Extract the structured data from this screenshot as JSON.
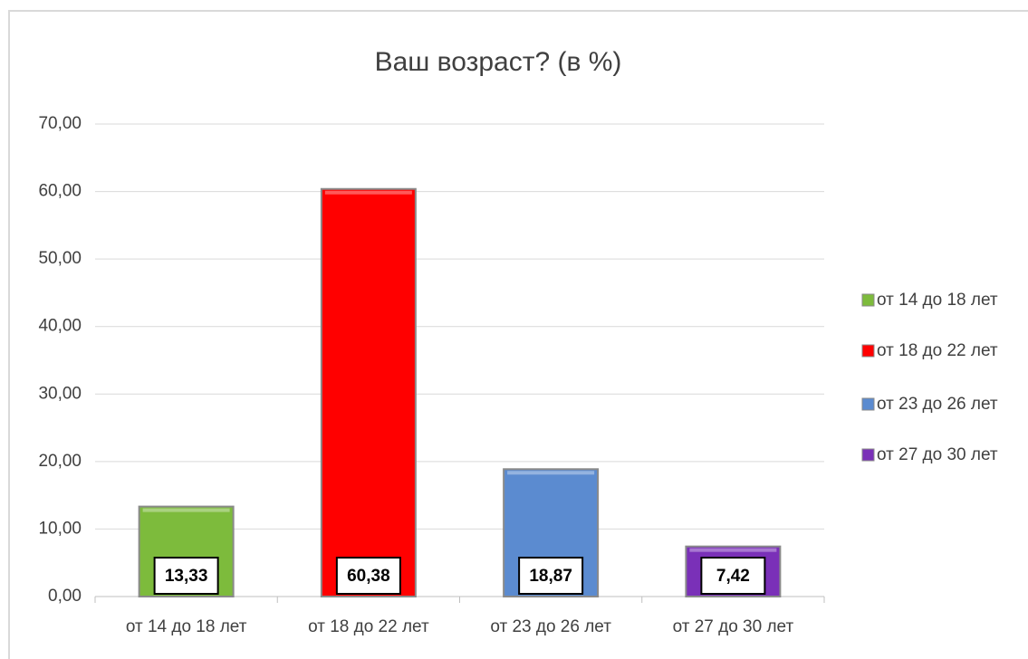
{
  "chart_data": {
    "type": "bar",
    "title": "Ваш возраст? (в %)",
    "categories": [
      "от 14 до 18 лет",
      "от 18 до 22 лет",
      "от 23 до 26 лет",
      "от 27 до 30 лет"
    ],
    "values": [
      13.33,
      60.38,
      18.87,
      7.42
    ],
    "value_labels": [
      "13,33",
      "60,38",
      "18,87",
      "7,42"
    ],
    "colors": [
      "#7dbb3c",
      "#ff0000",
      "#5b8bd0",
      "#7a30b8"
    ],
    "ylim": [
      0,
      70
    ],
    "yticks": [
      {
        "value": 0,
        "label": "0,00"
      },
      {
        "value": 10,
        "label": "10,00"
      },
      {
        "value": 20,
        "label": "20,00"
      },
      {
        "value": 30,
        "label": "30,00"
      },
      {
        "value": 40,
        "label": "40,00"
      },
      {
        "value": 50,
        "label": "50,00"
      },
      {
        "value": 60,
        "label": "60,00"
      },
      {
        "value": 70,
        "label": "70,00"
      }
    ],
    "grid": true,
    "legend": "right"
  }
}
